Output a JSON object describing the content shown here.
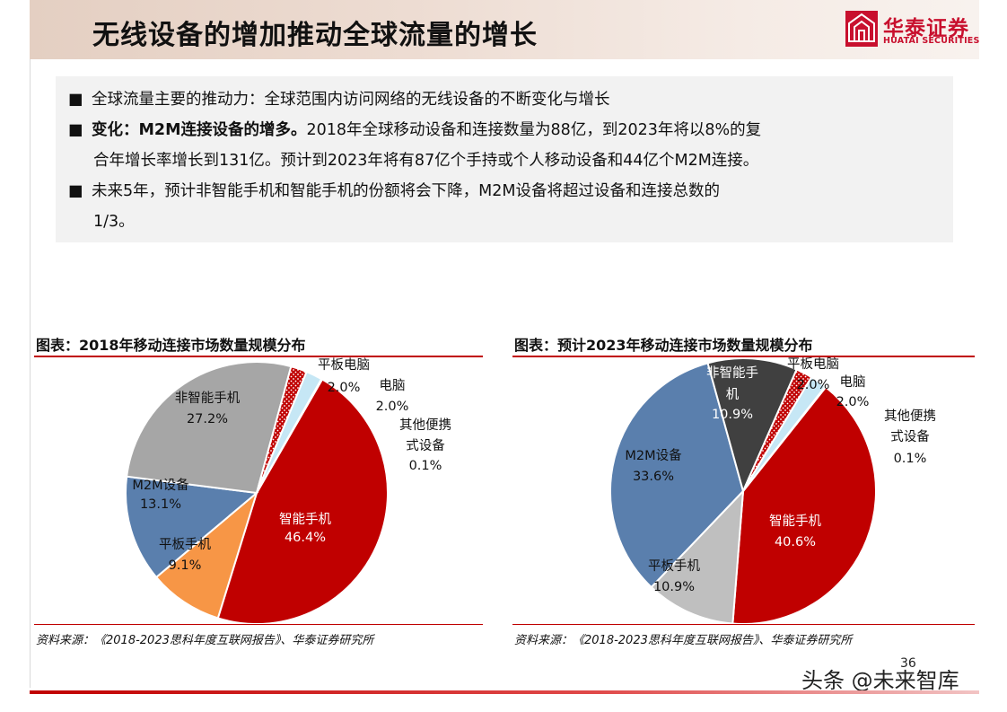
{
  "header": {
    "title": "无线设备的增加推动全球流量的增长",
    "logo_cn": "华泰证券",
    "logo_en": "HUATAI SECURITIES"
  },
  "bullets": {
    "b1": "全球流量主要的推动力：全球范围内访问网络的无线设备的不断变化与增长",
    "b2_bold": "变化：M2M连接设备的增多。",
    "b2_text": "2018年全球移动设备和连接数量为88亿，到2023年将以8%的复",
    "b2_cont": "合年增长率增长到131亿。预计到2023年将有87亿个手持或个人移动设备和44亿个M2M连接。",
    "b3_text": "未来5年，预计非智能手机和智能手机的份额将会下降，M2M设备将超过设备和连接总数的",
    "b3_cont": "1/3。",
    "marker": "■"
  },
  "chart_data": [
    {
      "type": "pie",
      "title": "图表：2018年移动连接市场数量规模分布",
      "source": "资料来源：《2018-2023思科年度互联网报告》、华泰证券研究所",
      "slices": [
        {
          "name": "智能手机",
          "value": 46.4,
          "label": "46.4%",
          "color": "#c00000"
        },
        {
          "name": "平板手机",
          "value": 9.1,
          "label": "9.1%",
          "color": "#f79646"
        },
        {
          "name": "M2M设备",
          "value": 13.1,
          "label": "13.1%",
          "color": "#5a7fad"
        },
        {
          "name": "非智能手机",
          "value": 27.2,
          "label": "27.2%",
          "color": "#a6a6a6"
        },
        {
          "name": "平板电脑",
          "value": 2.0,
          "label": "2.0%",
          "color": "#c00000",
          "pattern": "dots"
        },
        {
          "name": "电脑",
          "value": 2.0,
          "label": "2.0%",
          "color": "#c6e7f5"
        },
        {
          "name": "其他便携式设备",
          "value": 0.1,
          "label": "0.1%",
          "color": "#ffffff"
        }
      ]
    },
    {
      "type": "pie",
      "title": "图表：预计2023年移动连接市场数量规模分布",
      "source": "资料来源：《2018-2023思科年度互联网报告》、华泰证券研究所",
      "slices": [
        {
          "name": "智能手机",
          "value": 40.6,
          "label": "40.6%",
          "color": "#c00000"
        },
        {
          "name": "平板手机",
          "value": 10.9,
          "label": "10.9%",
          "color": "#bfbfbf"
        },
        {
          "name": "M2M设备",
          "value": 33.6,
          "label": "33.6%",
          "color": "#5a7fad"
        },
        {
          "name": "非智能手机",
          "value": 10.9,
          "label": "10.9%",
          "color": "#404040"
        },
        {
          "name": "平板电脑",
          "value": 2.0,
          "label": "2.0%",
          "color": "#c00000",
          "pattern": "dots"
        },
        {
          "name": "电脑",
          "value": 2.0,
          "label": "2.0%",
          "color": "#c6e7f5"
        },
        {
          "name": "其他便携式设备",
          "value": 0.1,
          "label": "0.1%",
          "color": "#ffffff"
        }
      ]
    }
  ],
  "footer": {
    "page": "36",
    "watermark": "头条 @未来智库"
  }
}
